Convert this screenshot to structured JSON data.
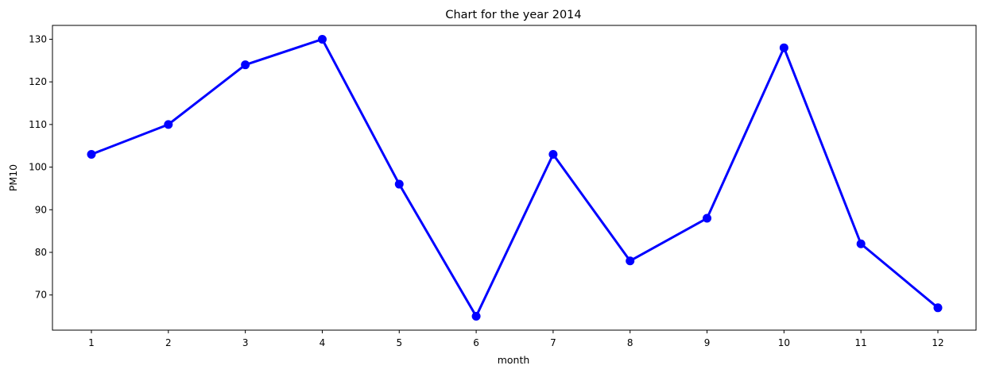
{
  "chart_data": {
    "type": "line",
    "title": "Chart for the year 2014",
    "xlabel": "month",
    "ylabel": "PM10",
    "categories": [
      "1",
      "2",
      "3",
      "4",
      "5",
      "6",
      "7",
      "8",
      "9",
      "10",
      "11",
      "12"
    ],
    "series": [
      {
        "values": [
          103,
          110,
          124,
          130,
          96,
          65,
          103,
          78,
          88,
          128,
          82,
          67
        ],
        "color": "#0000ff"
      }
    ],
    "yticks": [
      70,
      80,
      90,
      100,
      110,
      120,
      130
    ],
    "ylim": [
      61.75,
      133.25
    ],
    "markers": true,
    "grid": false
  }
}
